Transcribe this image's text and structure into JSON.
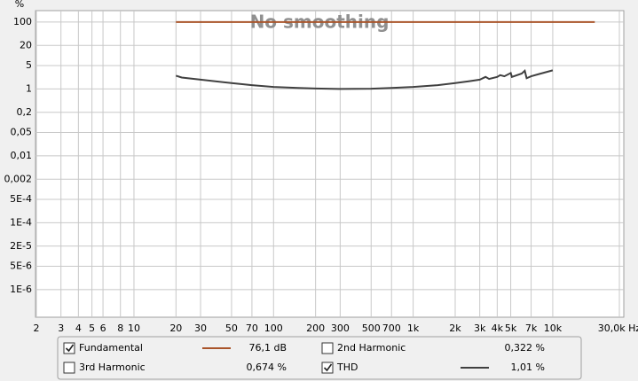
{
  "chart_data": {
    "type": "line",
    "annotation": "No smoothing",
    "y_label": "%",
    "x_scale": "log",
    "y_scale": "log",
    "grid": true,
    "xlim": [
      2,
      30000
    ],
    "xticks": [
      2,
      3,
      4,
      5,
      6,
      8,
      10,
      20,
      30,
      50,
      70,
      100,
      200,
      300,
      500,
      700,
      {
        "value": 1000,
        "label": "1k"
      },
      {
        "value": 2000,
        "label": "2k"
      },
      {
        "value": 3000,
        "label": "3k"
      },
      {
        "value": 4000,
        "label": "4k"
      },
      {
        "value": 5000,
        "label": "5k"
      },
      {
        "value": 7000,
        "label": "7k"
      },
      {
        "value": 10000,
        "label": "10k"
      },
      {
        "value": 30000,
        "label": "30,0k Hz"
      }
    ],
    "ylim": [
      1.5e-07,
      220
    ],
    "yticks": [
      100,
      20,
      5,
      1,
      {
        "value": 0.2,
        "label": "0,2"
      },
      {
        "value": 0.05,
        "label": "0,05"
      },
      {
        "value": 0.01,
        "label": "0,01"
      },
      {
        "value": 0.002,
        "label": "0,002"
      },
      {
        "value": 0.0005,
        "label": "5E-4"
      },
      {
        "value": 0.0001,
        "label": "1E-4"
      },
      {
        "value": 2e-05,
        "label": "2E-5"
      },
      {
        "value": 5e-06,
        "label": "5E-6"
      },
      {
        "value": 1e-06,
        "label": "1E-6"
      }
    ],
    "series": [
      {
        "name": "Fundamental",
        "color": "#a9542a",
        "checked": true,
        "reading": "76,1 dB",
        "x": [
          20,
          20000
        ],
        "values": [
          100,
          100
        ]
      },
      {
        "name": "2nd Harmonic",
        "color": "#a01818",
        "checked": false,
        "reading": "0,322 %",
        "x": [],
        "values": []
      },
      {
        "name": "3rd Harmonic",
        "color": "#e0a010",
        "checked": false,
        "reading": "0,674 %",
        "x": [],
        "values": []
      },
      {
        "name": "THD",
        "color": "#404040",
        "checked": true,
        "reading": "1,01 %",
        "x": [
          20,
          22,
          30,
          50,
          70,
          100,
          150,
          200,
          300,
          500,
          700,
          1000,
          1500,
          2000,
          2500,
          3000,
          3300,
          3500,
          4000,
          4200,
          4500,
          5000,
          5100,
          6000,
          6300,
          6500,
          7000,
          8000,
          10000
        ],
        "values": [
          2.5,
          2.2,
          1.9,
          1.5,
          1.3,
          1.15,
          1.07,
          1.03,
          1.0,
          1.02,
          1.07,
          1.15,
          1.3,
          1.5,
          1.7,
          1.9,
          2.3,
          2.0,
          2.3,
          2.6,
          2.4,
          3.0,
          2.3,
          2.9,
          3.5,
          2.1,
          2.4,
          2.8,
          3.6
        ]
      }
    ]
  }
}
